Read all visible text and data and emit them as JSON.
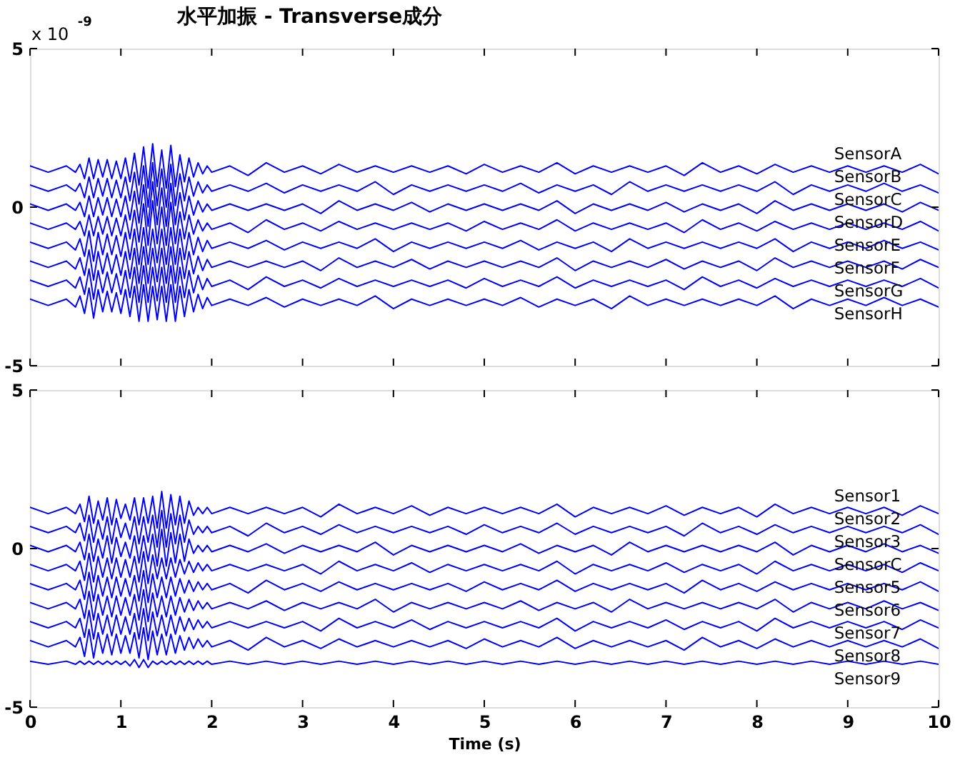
{
  "chart_data": [
    {
      "type": "line",
      "title": "水平加振 - Transverse成分",
      "annotations": [
        "x 10$^{-9}$"
      ],
      "x": [
        0,
        0.2,
        0.4,
        0.5,
        0.55,
        0.6,
        0.65,
        0.7,
        0.75,
        0.8,
        0.85,
        0.9,
        0.95,
        1,
        1.05,
        1.1,
        1.15,
        1.2,
        1.25,
        1.3,
        1.35,
        1.4,
        1.45,
        1.5,
        1.55,
        1.6,
        1.65,
        1.7,
        1.75,
        1.8,
        1.85,
        1.9,
        1.95,
        2,
        2.2,
        2.4,
        2.6,
        2.8,
        3,
        3.2,
        3.4,
        3.6,
        3.8,
        4,
        4.2,
        4.4,
        4.6,
        4.8,
        5,
        5.2,
        5.4,
        5.6,
        5.8,
        6,
        6.2,
        6.4,
        6.6,
        6.8,
        7,
        7.2,
        7.4,
        7.6,
        7.8,
        8,
        8.2,
        8.4,
        8.6,
        8.8,
        9,
        9.2,
        9.4,
        9.6,
        9.8,
        10
      ],
      "xlim": [
        0,
        10
      ],
      "xticks": [
        0,
        1,
        2,
        3,
        4,
        5,
        6,
        7,
        8,
        9,
        10
      ],
      "ylim": [
        -5,
        5
      ],
      "yticks": [
        -5,
        0,
        5
      ],
      "tick_labels": "y",
      "series": [
        {
          "name": "SensorA",
          "color": "#0000ff",
          "values": [
            1.3,
            1.1,
            1.3,
            1.1,
            1.35,
            0.9,
            1.55,
            0.9,
            1.5,
            0.95,
            1.5,
            0.9,
            1.45,
            0.9,
            1.55,
            0.8,
            1.7,
            0.7,
            1.9,
            0.6,
            2.0,
            0.65,
            1.8,
            0.6,
            1.95,
            0.65,
            1.65,
            0.8,
            1.55,
            0.95,
            1.4,
            1.05,
            1.3,
            1.1,
            1.3,
            1.0,
            1.4,
            1.1,
            1.3,
            1.05,
            1.35,
            1.1,
            1.3,
            1.1,
            1.3,
            1.1,
            1.3,
            1.05,
            1.35,
            1.1,
            1.3,
            1.1,
            1.4,
            1.05,
            1.3,
            1.1,
            1.3,
            1.1,
            1.3,
            1.0,
            1.4,
            1.1,
            1.3,
            1.05,
            1.35,
            1.1,
            1.3,
            1.1,
            1.3,
            1.1,
            1.3,
            1.1,
            1.35,
            1.05
          ]
        },
        {
          "name": "SensorB",
          "color": "#0000ff",
          "values": [
            0.7,
            0.5,
            0.7,
            0.5,
            0.75,
            0.3,
            0.95,
            0.3,
            0.9,
            0.35,
            0.9,
            0.3,
            0.85,
            0.3,
            0.95,
            0.2,
            1.1,
            0.1,
            1.3,
            0,
            1.4,
            0.05,
            1.2,
            0,
            1.35,
            0.05,
            1.05,
            0.2,
            0.95,
            0.35,
            0.8,
            0.45,
            0.7,
            0.5,
            0.7,
            0.5,
            0.75,
            0.45,
            0.7,
            0.5,
            0.7,
            0.5,
            0.8,
            0.4,
            0.7,
            0.5,
            0.7,
            0.5,
            0.7,
            0.5,
            0.75,
            0.45,
            0.7,
            0.5,
            0.7,
            0.4,
            0.8,
            0.5,
            0.7,
            0.5,
            0.7,
            0.5,
            0.7,
            0.5,
            0.8,
            0.4,
            0.7,
            0.5,
            0.7,
            0.5,
            0.75,
            0.5,
            0.7,
            0.45
          ]
        },
        {
          "name": "SensorC",
          "color": "#0000ff",
          "values": [
            0.1,
            -0.1,
            0.1,
            -0.1,
            0.15,
            -0.3,
            0.35,
            -0.3,
            0.3,
            -0.25,
            0.3,
            -0.3,
            0.25,
            -0.3,
            0.35,
            -0.4,
            0.5,
            -0.5,
            0.7,
            -0.6,
            0.8,
            -0.55,
            0.6,
            -0.6,
            0.75,
            -0.55,
            0.45,
            -0.4,
            0.35,
            -0.25,
            0.2,
            -0.15,
            0.1,
            -0.1,
            0.1,
            -0.1,
            0.1,
            -0.1,
            0.1,
            -0.2,
            0.2,
            -0.1,
            0.1,
            -0.1,
            0.15,
            -0.15,
            0.1,
            -0.1,
            0.1,
            -0.1,
            0.1,
            -0.1,
            0.2,
            -0.2,
            0.1,
            -0.1,
            0.1,
            -0.1,
            0.15,
            -0.15,
            0.1,
            -0.1,
            0.1,
            -0.2,
            0.2,
            -0.1,
            0.1,
            -0.1,
            0.1,
            -0.1,
            0.1,
            -0.15,
            0.15,
            -0.1
          ]
        },
        {
          "name": "SensorD",
          "color": "#0000ff",
          "values": [
            -0.5,
            -0.7,
            -0.5,
            -0.7,
            -0.45,
            -0.9,
            -0.25,
            -0.9,
            -0.3,
            -0.85,
            -0.3,
            -0.9,
            -0.35,
            -0.9,
            -0.25,
            -1.0,
            -0.1,
            -1.1,
            0.1,
            -1.2,
            0.2,
            -1.15,
            0,
            -1.2,
            0.15,
            -1.15,
            -0.15,
            -1.0,
            -0.25,
            -0.85,
            -0.4,
            -0.75,
            -0.5,
            -0.7,
            -0.5,
            -0.8,
            -0.4,
            -0.7,
            -0.5,
            -0.75,
            -0.45,
            -0.7,
            -0.5,
            -0.7,
            -0.5,
            -0.7,
            -0.5,
            -0.75,
            -0.45,
            -0.7,
            -0.5,
            -0.7,
            -0.4,
            -0.75,
            -0.5,
            -0.7,
            -0.5,
            -0.7,
            -0.5,
            -0.8,
            -0.4,
            -0.7,
            -0.5,
            -0.75,
            -0.45,
            -0.7,
            -0.5,
            -0.7,
            -0.5,
            -0.7,
            -0.5,
            -0.7,
            -0.45,
            -0.75
          ]
        },
        {
          "name": "SensorE",
          "color": "#0000ff",
          "values": [
            -1.1,
            -1.3,
            -1.1,
            -1.35,
            -1.0,
            -1.55,
            -0.75,
            -1.7,
            -0.8,
            -1.5,
            -0.85,
            -1.5,
            -0.9,
            -1.55,
            -0.8,
            -1.65,
            -0.7,
            -1.8,
            -0.65,
            -1.8,
            -0.7,
            -1.75,
            -0.7,
            -1.8,
            -0.65,
            -1.8,
            -0.7,
            -1.65,
            -0.8,
            -1.5,
            -0.95,
            -1.4,
            -1.05,
            -1.3,
            -1.1,
            -1.3,
            -1.05,
            -1.35,
            -1.1,
            -1.3,
            -1.1,
            -1.3,
            -1.0,
            -1.4,
            -1.1,
            -1.3,
            -1.1,
            -1.3,
            -1.1,
            -1.3,
            -1.05,
            -1.35,
            -1.1,
            -1.3,
            -1.1,
            -1.4,
            -1.0,
            -1.3,
            -1.1,
            -1.3,
            -1.1,
            -1.3,
            -1.1,
            -1.3,
            -1.0,
            -1.4,
            -1.1,
            -1.3,
            -1.1,
            -1.3,
            -1.05,
            -1.3,
            -1.1,
            -1.35
          ]
        },
        {
          "name": "SensorF",
          "color": "#0000ff",
          "values": [
            -1.7,
            -1.9,
            -1.7,
            -1.95,
            -1.6,
            -2.15,
            -1.35,
            -2.3,
            -1.4,
            -2.1,
            -1.45,
            -2.1,
            -1.5,
            -2.15,
            -1.4,
            -2.25,
            -1.3,
            -2.4,
            -1.25,
            -2.4,
            -1.3,
            -2.35,
            -1.3,
            -2.4,
            -1.25,
            -2.4,
            -1.3,
            -2.25,
            -1.4,
            -2.1,
            -1.55,
            -2.0,
            -1.65,
            -1.9,
            -1.7,
            -1.9,
            -1.7,
            -1.9,
            -1.7,
            -2.0,
            -1.6,
            -1.9,
            -1.7,
            -1.9,
            -1.65,
            -1.95,
            -1.7,
            -1.9,
            -1.7,
            -1.9,
            -1.7,
            -1.9,
            -1.6,
            -2.0,
            -1.7,
            -1.9,
            -1.7,
            -1.9,
            -1.65,
            -1.95,
            -1.7,
            -1.9,
            -1.7,
            -2.0,
            -1.6,
            -1.9,
            -1.7,
            -1.9,
            -1.7,
            -1.9,
            -1.7,
            -1.95,
            -1.65,
            -1.9
          ]
        },
        {
          "name": "SensorG",
          "color": "#0000ff",
          "values": [
            -2.3,
            -2.5,
            -2.3,
            -2.55,
            -2.2,
            -2.75,
            -1.95,
            -2.9,
            -2.0,
            -2.7,
            -2.05,
            -2.7,
            -2.1,
            -2.75,
            -2.0,
            -2.85,
            -1.9,
            -3.0,
            -1.85,
            -3.0,
            -1.9,
            -2.95,
            -1.9,
            -3.0,
            -1.85,
            -3.0,
            -1.9,
            -2.85,
            -2.0,
            -2.7,
            -2.15,
            -2.6,
            -2.25,
            -2.5,
            -2.3,
            -2.6,
            -2.2,
            -2.5,
            -2.3,
            -2.55,
            -2.25,
            -2.5,
            -2.3,
            -2.5,
            -2.3,
            -2.5,
            -2.3,
            -2.55,
            -2.25,
            -2.5,
            -2.3,
            -2.5,
            -2.2,
            -2.55,
            -2.3,
            -2.5,
            -2.3,
            -2.5,
            -2.3,
            -2.6,
            -2.2,
            -2.5,
            -2.3,
            -2.55,
            -2.25,
            -2.5,
            -2.3,
            -2.5,
            -2.3,
            -2.5,
            -2.3,
            -2.5,
            -2.25,
            -2.55
          ]
        },
        {
          "name": "SensorH",
          "color": "#0000ff",
          "values": [
            -2.9,
            -3.1,
            -2.9,
            -3.15,
            -2.8,
            -3.35,
            -2.55,
            -3.5,
            -2.6,
            -3.3,
            -2.65,
            -3.3,
            -2.7,
            -3.35,
            -2.6,
            -3.45,
            -2.5,
            -3.6,
            -2.45,
            -3.6,
            -2.5,
            -3.55,
            -2.5,
            -3.6,
            -2.45,
            -3.6,
            -2.5,
            -3.45,
            -2.6,
            -3.3,
            -2.75,
            -3.2,
            -2.85,
            -3.1,
            -2.9,
            -3.1,
            -2.85,
            -3.15,
            -2.9,
            -3.1,
            -2.9,
            -3.1,
            -2.8,
            -3.2,
            -2.9,
            -3.1,
            -2.9,
            -3.1,
            -2.9,
            -3.1,
            -2.85,
            -3.15,
            -2.9,
            -3.1,
            -2.9,
            -3.2,
            -2.8,
            -3.1,
            -2.9,
            -3.1,
            -2.9,
            -3.1,
            -2.9,
            -3.1,
            -2.8,
            -3.2,
            -2.9,
            -3.1,
            -2.9,
            -3.1,
            -2.85,
            -3.1,
            -2.9,
            -3.15
          ]
        }
      ]
    },
    {
      "type": "line",
      "xlabel": "Time (s)",
      "x": [
        0,
        0.2,
        0.4,
        0.5,
        0.55,
        0.6,
        0.65,
        0.7,
        0.75,
        0.8,
        0.85,
        0.9,
        0.95,
        1,
        1.05,
        1.1,
        1.15,
        1.2,
        1.25,
        1.3,
        1.35,
        1.4,
        1.45,
        1.5,
        1.55,
        1.6,
        1.65,
        1.7,
        1.75,
        1.8,
        1.85,
        1.9,
        1.95,
        2,
        2.2,
        2.4,
        2.6,
        2.8,
        3,
        3.2,
        3.4,
        3.6,
        3.8,
        4,
        4.2,
        4.4,
        4.6,
        4.8,
        5,
        5.2,
        5.4,
        5.6,
        5.8,
        6,
        6.2,
        6.4,
        6.6,
        6.8,
        7,
        7.2,
        7.4,
        7.6,
        7.8,
        8,
        8.2,
        8.4,
        8.6,
        8.8,
        9,
        9.2,
        9.4,
        9.6,
        9.8,
        10
      ],
      "xlim": [
        0,
        10
      ],
      "xticks": [
        0,
        1,
        2,
        3,
        4,
        5,
        6,
        7,
        8,
        9,
        10
      ],
      "ylim": [
        -5,
        5
      ],
      "yticks": [
        -5,
        0,
        5
      ],
      "series": [
        {
          "name": "Sensor1",
          "color": "#0000ff",
          "values": [
            1.3,
            1.1,
            1.3,
            1.1,
            1.4,
            0.85,
            1.65,
            0.8,
            1.5,
            0.9,
            1.6,
            0.75,
            1.55,
            0.95,
            1.4,
            0.9,
            1.6,
            0.75,
            1.6,
            0.8,
            1.65,
            0.65,
            1.8,
            0.65,
            1.7,
            0.75,
            1.65,
            0.8,
            1.5,
            1.05,
            1.3,
            1.1,
            1.3,
            1.1,
            1.3,
            1.1,
            1.3,
            1.1,
            1.3,
            1.0,
            1.4,
            1.1,
            1.3,
            1.1,
            1.35,
            1.05,
            1.3,
            1.1,
            1.3,
            1.1,
            1.3,
            1.1,
            1.4,
            1.0,
            1.3,
            1.1,
            1.3,
            1.1,
            1.35,
            1.05,
            1.3,
            1.1,
            1.3,
            1.0,
            1.4,
            1.1,
            1.3,
            1.1,
            1.3,
            1.1,
            1.3,
            1.05,
            1.35,
            1.1
          ]
        },
        {
          "name": "Sensor2",
          "color": "#0000ff",
          "values": [
            0.7,
            0.5,
            0.7,
            0.5,
            0.8,
            0.25,
            1.05,
            0.2,
            0.9,
            0.3,
            1.0,
            0.15,
            0.95,
            0.35,
            0.8,
            0.3,
            1.0,
            0.15,
            1.0,
            0.2,
            1.05,
            0.05,
            1.2,
            0.05,
            1.1,
            0.15,
            1.05,
            0.2,
            0.9,
            0.45,
            0.7,
            0.5,
            0.7,
            0.5,
            0.7,
            0.4,
            0.8,
            0.5,
            0.7,
            0.45,
            0.75,
            0.5,
            0.7,
            0.5,
            0.7,
            0.5,
            0.7,
            0.45,
            0.75,
            0.5,
            0.7,
            0.5,
            0.8,
            0.45,
            0.7,
            0.5,
            0.7,
            0.5,
            0.7,
            0.4,
            0.8,
            0.5,
            0.7,
            0.45,
            0.75,
            0.5,
            0.7,
            0.5,
            0.7,
            0.5,
            0.7,
            0.5,
            0.75,
            0.45
          ]
        },
        {
          "name": "Sensor3",
          "color": "#0000ff",
          "values": [
            0.1,
            -0.1,
            0.1,
            -0.1,
            0.2,
            -0.35,
            0.45,
            -0.4,
            0.3,
            -0.3,
            0.4,
            -0.45,
            0.35,
            -0.25,
            0.2,
            -0.3,
            0.4,
            -0.45,
            0.4,
            -0.4,
            0.45,
            -0.55,
            0.6,
            -0.55,
            0.5,
            -0.45,
            0.45,
            -0.4,
            0.3,
            -0.15,
            0.1,
            -0.1,
            0.1,
            -0.1,
            0.1,
            -0.1,
            0.15,
            -0.15,
            0.1,
            -0.1,
            0.1,
            -0.1,
            0.2,
            -0.2,
            0.1,
            -0.1,
            0.1,
            -0.1,
            0.1,
            -0.1,
            0.15,
            -0.15,
            0.1,
            -0.1,
            0.1,
            -0.2,
            0.2,
            -0.1,
            0.1,
            -0.1,
            0.1,
            -0.1,
            0.1,
            -0.1,
            0.2,
            -0.2,
            0.1,
            -0.1,
            0.1,
            -0.1,
            0.15,
            -0.1,
            0.1,
            -0.15
          ]
        },
        {
          "name": "SensorC",
          "color": "#0000ff",
          "values": [
            -0.5,
            -0.7,
            -0.5,
            -0.7,
            -0.4,
            -1.0,
            -0.15,
            -1.05,
            -0.25,
            -0.9,
            -0.3,
            -0.95,
            -0.3,
            -0.9,
            -0.35,
            -0.9,
            -0.25,
            -1.05,
            -0.1,
            -1.1,
            -0.2,
            -0.95,
            -0.3,
            -0.95,
            -0.3,
            -0.9,
            -0.35,
            -0.8,
            -0.4,
            -0.75,
            -0.45,
            -0.7,
            -0.5,
            -0.7,
            -0.5,
            -0.7,
            -0.5,
            -0.7,
            -0.5,
            -0.8,
            -0.4,
            -0.7,
            -0.5,
            -0.7,
            -0.45,
            -0.75,
            -0.5,
            -0.7,
            -0.5,
            -0.7,
            -0.5,
            -0.7,
            -0.4,
            -0.8,
            -0.5,
            -0.7,
            -0.5,
            -0.7,
            -0.45,
            -0.75,
            -0.5,
            -0.7,
            -0.5,
            -0.8,
            -0.4,
            -0.7,
            -0.5,
            -0.7,
            -0.5,
            -0.7,
            -0.5,
            -0.75,
            -0.45,
            -0.7
          ]
        },
        {
          "name": "Sensor5",
          "color": "#0000ff",
          "values": [
            -1.1,
            -1.3,
            -1.1,
            -1.3,
            -1.0,
            -1.6,
            -0.75,
            -1.65,
            -0.85,
            -1.5,
            -0.9,
            -1.55,
            -0.9,
            -1.5,
            -0.95,
            -1.5,
            -0.85,
            -1.65,
            -0.7,
            -1.7,
            -0.8,
            -1.55,
            -0.9,
            -1.55,
            -0.9,
            -1.5,
            -0.95,
            -1.4,
            -1.0,
            -1.35,
            -1.05,
            -1.3,
            -1.1,
            -1.3,
            -1.1,
            -1.4,
            -1.0,
            -1.3,
            -1.1,
            -1.35,
            -1.05,
            -1.3,
            -1.1,
            -1.3,
            -1.1,
            -1.3,
            -1.1,
            -1.35,
            -1.05,
            -1.3,
            -1.1,
            -1.3,
            -1.0,
            -1.35,
            -1.1,
            -1.3,
            -1.1,
            -1.3,
            -1.1,
            -1.4,
            -1.0,
            -1.3,
            -1.1,
            -1.35,
            -1.05,
            -1.3,
            -1.1,
            -1.3,
            -1.1,
            -1.3,
            -1.1,
            -1.3,
            -1.05,
            -1.35
          ]
        },
        {
          "name": "Sensor6",
          "color": "#0000ff",
          "values": [
            -1.7,
            -1.9,
            -1.7,
            -1.9,
            -1.6,
            -2.2,
            -1.35,
            -2.25,
            -1.45,
            -2.1,
            -1.5,
            -2.15,
            -1.5,
            -2.1,
            -1.55,
            -2.1,
            -1.45,
            -2.25,
            -1.3,
            -2.3,
            -1.4,
            -2.15,
            -1.5,
            -2.15,
            -1.5,
            -2.1,
            -1.55,
            -2.0,
            -1.6,
            -1.95,
            -1.65,
            -1.9,
            -1.7,
            -1.9,
            -1.7,
            -1.9,
            -1.65,
            -1.95,
            -1.7,
            -1.9,
            -1.7,
            -1.9,
            -1.6,
            -2.0,
            -1.7,
            -1.9,
            -1.7,
            -1.9,
            -1.7,
            -1.9,
            -1.65,
            -1.95,
            -1.7,
            -1.9,
            -1.7,
            -2.0,
            -1.6,
            -1.9,
            -1.7,
            -1.9,
            -1.7,
            -1.9,
            -1.7,
            -1.9,
            -1.6,
            -2.0,
            -1.7,
            -1.9,
            -1.7,
            -1.9,
            -1.65,
            -1.9,
            -1.7,
            -1.95
          ]
        },
        {
          "name": "Sensor7",
          "color": "#0000ff",
          "values": [
            -2.3,
            -2.5,
            -2.3,
            -2.5,
            -2.2,
            -2.8,
            -1.95,
            -2.85,
            -2.05,
            -2.7,
            -2.1,
            -2.75,
            -2.1,
            -2.7,
            -2.15,
            -2.7,
            -2.05,
            -2.85,
            -1.9,
            -2.9,
            -2.0,
            -2.75,
            -2.1,
            -2.75,
            -2.1,
            -2.7,
            -2.15,
            -2.6,
            -2.2,
            -2.55,
            -2.25,
            -2.5,
            -2.3,
            -2.5,
            -2.3,
            -2.5,
            -2.3,
            -2.5,
            -2.3,
            -2.6,
            -2.2,
            -2.5,
            -2.3,
            -2.5,
            -2.25,
            -2.55,
            -2.3,
            -2.5,
            -2.3,
            -2.5,
            -2.3,
            -2.5,
            -2.2,
            -2.6,
            -2.3,
            -2.5,
            -2.3,
            -2.5,
            -2.25,
            -2.55,
            -2.3,
            -2.5,
            -2.3,
            -2.6,
            -2.2,
            -2.5,
            -2.3,
            -2.5,
            -2.3,
            -2.5,
            -2.3,
            -2.55,
            -2.25,
            -2.5
          ]
        },
        {
          "name": "Sensor8",
          "color": "#0000ff",
          "values": [
            -2.9,
            -3.1,
            -2.9,
            -3.1,
            -2.8,
            -3.4,
            -2.55,
            -3.45,
            -2.65,
            -3.3,
            -2.7,
            -3.35,
            -2.7,
            -3.3,
            -2.75,
            -3.3,
            -2.65,
            -3.45,
            -2.5,
            -3.5,
            -2.6,
            -3.35,
            -2.7,
            -3.35,
            -2.7,
            -3.3,
            -2.75,
            -3.2,
            -2.8,
            -3.15,
            -2.85,
            -3.1,
            -2.9,
            -3.1,
            -2.9,
            -3.2,
            -2.8,
            -3.1,
            -2.9,
            -3.15,
            -2.85,
            -3.1,
            -2.9,
            -3.1,
            -2.9,
            -3.1,
            -2.9,
            -3.15,
            -2.85,
            -3.1,
            -2.9,
            -3.1,
            -2.8,
            -3.15,
            -2.9,
            -3.1,
            -2.9,
            -3.1,
            -2.9,
            -3.2,
            -2.8,
            -3.1,
            -2.9,
            -3.15,
            -2.85,
            -3.1,
            -2.9,
            -3.1,
            -2.9,
            -3.1,
            -2.9,
            -3.1,
            -2.85,
            -3.15
          ]
        },
        {
          "name": "Sensor9",
          "color": "#0000ff",
          "values": [
            -3.55,
            -3.65,
            -3.55,
            -3.65,
            -3.55,
            -3.65,
            -3.55,
            -3.65,
            -3.55,
            -3.65,
            -3.55,
            -3.65,
            -3.55,
            -3.65,
            -3.55,
            -3.7,
            -3.5,
            -3.75,
            -3.5,
            -3.75,
            -3.55,
            -3.65,
            -3.55,
            -3.65,
            -3.55,
            -3.65,
            -3.55,
            -3.65,
            -3.55,
            -3.65,
            -3.55,
            -3.65,
            -3.55,
            -3.65,
            -3.55,
            -3.65,
            -3.55,
            -3.65,
            -3.55,
            -3.65,
            -3.55,
            -3.65,
            -3.55,
            -3.65,
            -3.55,
            -3.65,
            -3.55,
            -3.65,
            -3.55,
            -3.65,
            -3.55,
            -3.65,
            -3.55,
            -3.65,
            -3.55,
            -3.65,
            -3.55,
            -3.65,
            -3.55,
            -3.65,
            -3.55,
            -3.65,
            -3.55,
            -3.65,
            -3.55,
            -3.65,
            -3.55,
            -3.65,
            -3.55,
            -3.65,
            -3.55,
            -3.65,
            -3.55,
            -3.65
          ]
        }
      ]
    }
  ]
}
